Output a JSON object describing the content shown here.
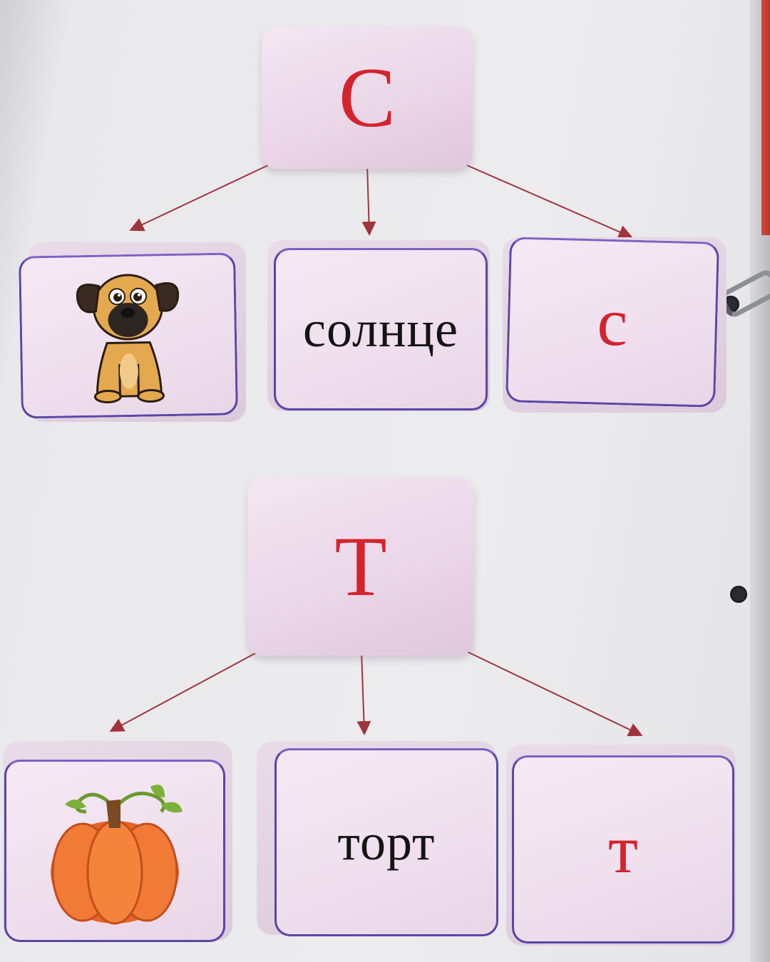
{
  "groups": [
    {
      "letter_upper": "С",
      "word": "солнце",
      "letter_lower": "с",
      "picture": "dog-picture"
    },
    {
      "letter_upper": "Т",
      "word": "торт",
      "letter_lower": "т",
      "picture": "pumpkin-picture"
    }
  ],
  "colors": {
    "card": "#efdfee",
    "card_border": "#5a46a8",
    "letter": "#d3242e",
    "word": "#141414",
    "arrow": "#a0343a"
  }
}
